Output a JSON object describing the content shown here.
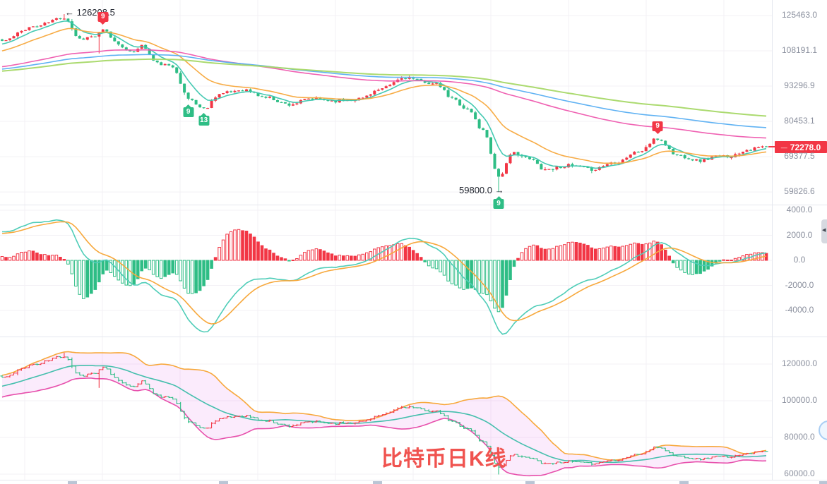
{
  "watermark": {
    "text": "比特币日K线",
    "color": "#f0534f"
  },
  "annotations": {
    "peak_label": "← 126208.5",
    "low_label": "59800.0 →"
  },
  "price_tag": {
    "value": "72278.0",
    "bg": "#f23645"
  },
  "colors": {
    "up": "#f23645",
    "down": "#2ebd85",
    "grid": "#f3f1f5",
    "separator": "#e4e7ee",
    "axis_text": "#8b909e",
    "macd_line": "#4fcdb8",
    "signal_line": "#f7a83c",
    "boll_upper": "#f7a83c",
    "boll_mid": "#45bfad",
    "boll_lower": "#e750ac",
    "boll_fill": "rgba(224,100,230,0.13)"
  },
  "chart_data": [
    {
      "type": "candlestick",
      "pane": "price",
      "title": "比特币日K线 (Bitcoin daily K-line)",
      "y_scale": "log",
      "grid": true,
      "y_ticks": [
        125463.0,
        108191.1,
        93296.9,
        80453.1,
        69377.5,
        59826.6
      ],
      "y_range_approx": [
        58000,
        128000
      ],
      "last_price": 72278.0,
      "up_means": "close >= open shown red (CN convention), down shown green",
      "candles_count": 198,
      "close_keypoints": [
        [
          0,
          112800
        ],
        [
          8,
          119700
        ],
        [
          16,
          124400
        ],
        [
          20,
          113800
        ],
        [
          24,
          115000
        ],
        [
          26,
          117800
        ],
        [
          30,
          111500
        ],
        [
          33,
          107200
        ],
        [
          36,
          110500
        ],
        [
          40,
          102600
        ],
        [
          44,
          101100
        ],
        [
          48,
          88500
        ],
        [
          52,
          84800
        ],
        [
          56,
          90300
        ],
        [
          62,
          91900
        ],
        [
          68,
          89000
        ],
        [
          74,
          86400
        ],
        [
          80,
          88500
        ],
        [
          86,
          87700
        ],
        [
          92,
          88500
        ],
        [
          97,
          91700
        ],
        [
          104,
          96700
        ],
        [
          108,
          95300
        ],
        [
          112,
          93900
        ],
        [
          116,
          88500
        ],
        [
          120,
          84600
        ],
        [
          124,
          77400
        ],
        [
          128,
          63900
        ],
        [
          132,
          70500
        ],
        [
          136,
          68600
        ],
        [
          140,
          65800
        ],
        [
          146,
          66800
        ],
        [
          152,
          65800
        ],
        [
          158,
          67800
        ],
        [
          164,
          70800
        ],
        [
          169,
          74700
        ],
        [
          174,
          69800
        ],
        [
          180,
          68200
        ],
        [
          184,
          69400
        ],
        [
          188,
          69600
        ],
        [
          192,
          71500
        ],
        [
          197,
          72300
        ]
      ],
      "high_overrides": {
        "16": 126208.5
      },
      "low_overrides": {
        "25": 107000,
        "128": 59800
      },
      "ma_periods": [
        7,
        20,
        100,
        140,
        200
      ],
      "ma_colors": [
        "#3bc6ae",
        "#f7a83c",
        "#ee58ae",
        "#57aef2",
        "#a6d867"
      ],
      "td_markers": [
        {
          "label": "9",
          "index": 26,
          "side": "above"
        },
        {
          "label": "9",
          "index": 48,
          "side": "below"
        },
        {
          "label": "13",
          "index": 52,
          "side": "below"
        },
        {
          "label": "9",
          "index": 128,
          "side": "below"
        },
        {
          "label": "9",
          "index": 169,
          "side": "above"
        }
      ],
      "annotations": [
        {
          "text": "126208.5",
          "index": 16,
          "at": "high"
        },
        {
          "text": "59800.0",
          "index": 128,
          "at": "low"
        }
      ]
    },
    {
      "type": "macd",
      "pane": "indicator",
      "params": [
        10,
        21,
        8
      ],
      "derived_from": "price closes",
      "grid": true,
      "y_ticks": [
        4000.0,
        2000.0,
        0.0,
        -2000.0,
        -4000.0
      ],
      "macd_min_target": -5900,
      "hist_min_target": -4100,
      "pos_color": "#f23645",
      "neg_color": "#2ebd85",
      "bar_style": "hollow while magnitude growing, solid while shrinking"
    },
    {
      "type": "ohlc_bollinger",
      "pane": "band",
      "period": 20,
      "stddev": 2,
      "grid": true,
      "y_scale": "linear",
      "y_ticks": [
        120000.0,
        100000.0,
        80000.0,
        60000.0
      ],
      "bar_style": "HLC bars with open/close side ticks"
    }
  ]
}
